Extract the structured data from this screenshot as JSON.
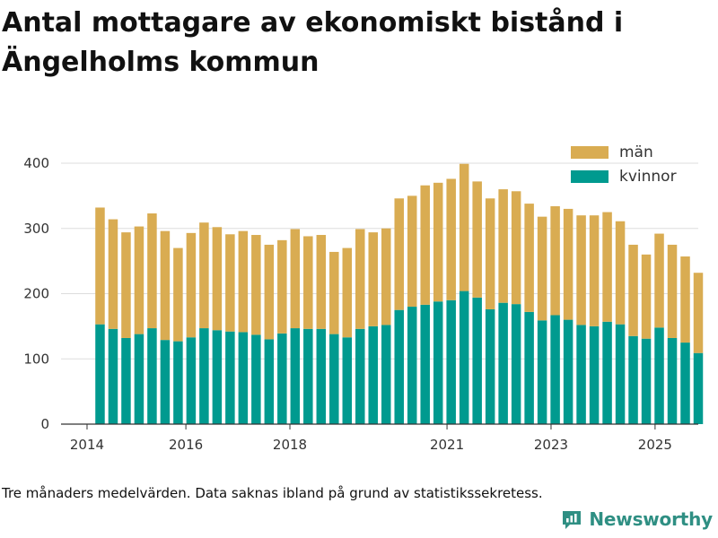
{
  "title": "Antal mottagare av ekonomiskt bistånd i Ängelholms kommun",
  "footnote": "Tre månaders medelvärden. Data saknas ibland på grund av statistikssekretess.",
  "brand": {
    "name": "Newsworthy",
    "icon": "newsworthy-logo-icon"
  },
  "colors": {
    "man": "#d9ac52",
    "kvinnor": "#009a8f",
    "grid": "#dddddd",
    "axis": "#333333",
    "brand": "#2f8f83"
  },
  "chart_data": {
    "type": "bar",
    "stacked": true,
    "title": "Antal mottagare av ekonomiskt bistånd i Ängelholms kommun",
    "xlabel": "",
    "ylabel": "",
    "ylim": [
      0,
      420
    ],
    "xlim": [
      2013.5,
      2025.75
    ],
    "y_ticks": [
      "0",
      "100",
      "200",
      "300",
      "400"
    ],
    "x_ticks": [
      {
        "label": "2014",
        "year": 2014.0
      },
      {
        "label": "2016",
        "year": 2015.9
      },
      {
        "label": "2018",
        "year": 2017.9
      },
      {
        "label": "2021",
        "year": 2020.92
      },
      {
        "label": "2023",
        "year": 2022.92
      },
      {
        "label": "2025",
        "year": 2024.92
      }
    ],
    "legend_position": "top-right",
    "x": [
      2014.25,
      2014.5,
      2014.75,
      2015.0,
      2015.25,
      2015.5,
      2015.75,
      2016.0,
      2016.25,
      2016.5,
      2016.75,
      2017.0,
      2017.25,
      2017.5,
      2017.75,
      2018.0,
      2018.25,
      2018.5,
      2018.75,
      2019.0,
      2019.25,
      2019.5,
      2019.75,
      2020.0,
      2020.25,
      2020.5,
      2020.75,
      2021.0,
      2021.25,
      2021.5,
      2021.75,
      2022.0,
      2022.25,
      2022.5,
      2022.75,
      2023.0,
      2023.25,
      2023.5,
      2023.75,
      2024.0,
      2024.25,
      2024.5,
      2024.75,
      2025.0,
      2025.25,
      2025.5,
      2025.75
    ],
    "series": [
      {
        "name": "kvinnor",
        "color": "#009a8f",
        "values": [
          153,
          146,
          132,
          138,
          147,
          129,
          127,
          133,
          147,
          144,
          142,
          141,
          137,
          130,
          139,
          147,
          146,
          146,
          138,
          133,
          146,
          150,
          152,
          175,
          180,
          183,
          188,
          190,
          204,
          194,
          176,
          186,
          184,
          172,
          159,
          167,
          160,
          152,
          150,
          157,
          153,
          135,
          131,
          148,
          132,
          125,
          109
        ]
      },
      {
        "name": "män",
        "color": "#d9ac52",
        "values": [
          179,
          168,
          162,
          165,
          176,
          167,
          143,
          160,
          162,
          158,
          149,
          155,
          153,
          145,
          143,
          152,
          142,
          144,
          126,
          137,
          153,
          144,
          148,
          171,
          170,
          183,
          182,
          186,
          195,
          178,
          170,
          174,
          173,
          166,
          159,
          167,
          170,
          168,
          170,
          168,
          158,
          140,
          129,
          144,
          143,
          132,
          123
        ]
      }
    ],
    "legend": [
      "män",
      "kvinnor"
    ]
  }
}
